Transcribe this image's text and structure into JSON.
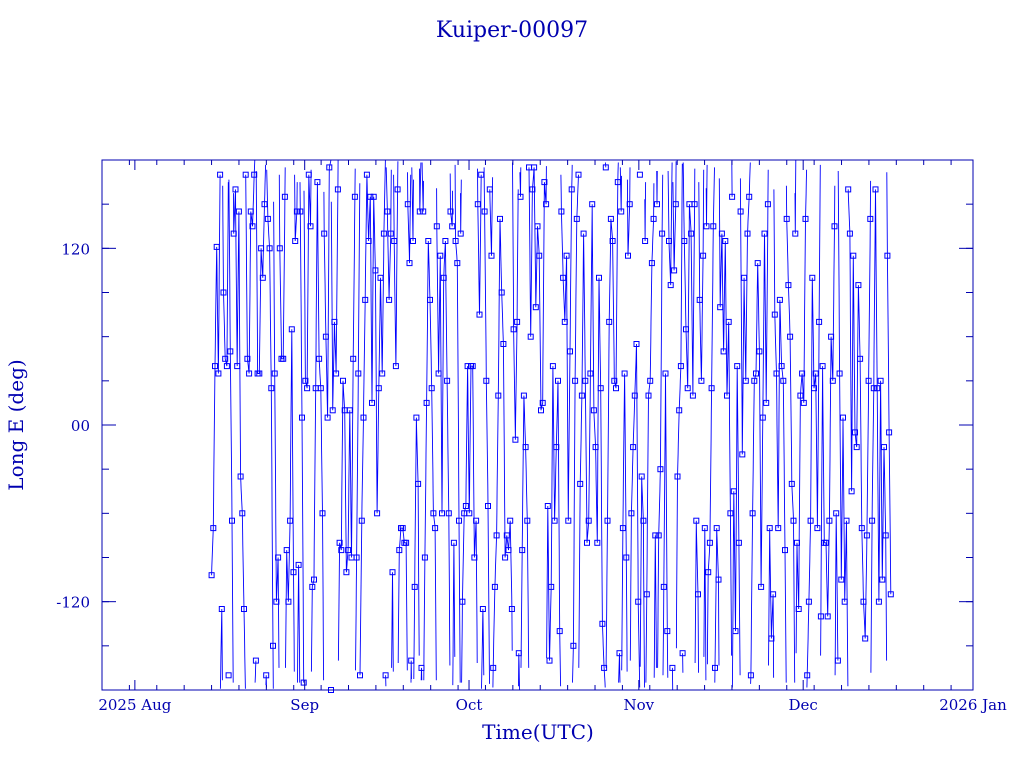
{
  "chart_data": {
    "type": "line",
    "title": "Kuiper-00097",
    "xlabel": "Time(UTC)",
    "ylabel": "Long E (deg)",
    "x_type": "date",
    "xlim": [
      "2025-07-26",
      "2026-01-01"
    ],
    "ylim": [
      -180,
      180
    ],
    "grid": false,
    "legend": "none",
    "x_tick_labels": [
      {
        "date": "2025-08-01",
        "label": "2025 Aug"
      },
      {
        "date": "2025-09-01",
        "label": "Sep"
      },
      {
        "date": "2025-10-01",
        "label": "Oct"
      },
      {
        "date": "2025-11-01",
        "label": "Nov"
      },
      {
        "date": "2025-12-01",
        "label": "Dec"
      },
      {
        "date": "2026-01-01",
        "label": "2026 Jan"
      }
    ],
    "y_ticks": [
      {
        "value": 120,
        "label": "120"
      },
      {
        "value": 0,
        "label": "00"
      },
      {
        "value": -120,
        "label": "-120"
      }
    ],
    "series": [
      {
        "color": "#0000ff",
        "marker": "square",
        "x_start": "2025-08-15",
        "x_end": "2025-12-17",
        "samples": [
          -102,
          -70,
          40,
          121,
          35,
          170,
          -125,
          90,
          45,
          40,
          -170,
          50,
          -65,
          130,
          160,
          40,
          145,
          -35,
          -60,
          -125,
          170,
          45,
          35,
          145,
          135,
          170,
          -160,
          35,
          35,
          120,
          100,
          150,
          -170,
          140,
          120,
          25,
          -150,
          35,
          -120,
          -90,
          120,
          45,
          45,
          155,
          -85,
          -120,
          -65,
          65,
          -100,
          125,
          145,
          -95,
          145,
          5,
          -175,
          30,
          25,
          170,
          135,
          -110,
          -105,
          25,
          165,
          45,
          25,
          -60,
          130,
          60,
          5,
          175,
          -180,
          10,
          70,
          35,
          160,
          -80,
          -85,
          30,
          10,
          -100,
          -85,
          10,
          -90,
          45,
          155,
          -90,
          35,
          -170,
          -65,
          5,
          85,
          170,
          125,
          155,
          15,
          155,
          105,
          -60,
          25,
          100,
          35,
          130,
          -170,
          145,
          85,
          130,
          -100,
          125,
          40,
          160,
          -85,
          -70,
          -70,
          -80,
          -80,
          150,
          110,
          -160,
          125,
          -110,
          5,
          -40,
          145,
          -165,
          145,
          -90,
          15,
          125,
          85,
          25,
          -60,
          -70,
          135,
          35,
          115,
          -60,
          100,
          125,
          30,
          -60,
          145,
          135,
          -80,
          125,
          110,
          -65,
          130,
          -120,
          -60,
          -55,
          40,
          -60,
          40,
          40,
          -90,
          -65,
          150,
          75,
          170,
          -125,
          145,
          30,
          -55,
          160,
          115,
          -165,
          -110,
          -75,
          20,
          140,
          90,
          55,
          -90,
          -75,
          -85,
          -65,
          -125,
          65,
          -10,
          70,
          -155,
          155,
          -85,
          20,
          -15,
          -65,
          175,
          60,
          160,
          175,
          80,
          135,
          115,
          10,
          15,
          165,
          150,
          -55,
          -160,
          -110,
          40,
          -65,
          -15,
          30,
          -140,
          145,
          100,
          70,
          115,
          -65,
          50,
          160,
          -150,
          30,
          140,
          170,
          -40,
          20,
          130,
          30,
          -80,
          -65,
          35,
          150,
          10,
          -15,
          -80,
          100,
          25,
          -135,
          -165,
          175,
          -65,
          70,
          140,
          125,
          30,
          25,
          165,
          -155,
          145,
          -70,
          35,
          -90,
          115,
          150,
          -60,
          -15,
          20,
          55,
          -120,
          170,
          -35,
          -65,
          125,
          -115,
          20,
          30,
          110,
          140,
          -75,
          150,
          -75,
          -30,
          130,
          -110,
          35,
          -140,
          125,
          95,
          -165,
          105,
          150,
          -35,
          10,
          40,
          -155,
          125,
          65,
          25,
          150,
          130,
          20,
          150,
          -65,
          -115,
          85,
          30,
          115,
          -70,
          135,
          -100,
          -80,
          25,
          135,
          -165,
          -70,
          -105,
          80,
          130,
          50,
          125,
          20,
          70,
          -60,
          155,
          -45,
          -140,
          40,
          -80,
          145,
          -20,
          100,
          30,
          130,
          155,
          -170,
          -60,
          30,
          35,
          110,
          50,
          -110,
          5,
          130,
          15,
          150,
          -70,
          -145,
          -115,
          75,
          35,
          -70,
          85,
          40,
          30,
          -85,
          140,
          95,
          60,
          -40,
          -65,
          130,
          -80,
          -125,
          20,
          35,
          15,
          140,
          -170,
          -120,
          -65,
          100,
          25,
          35,
          -70,
          70,
          -130,
          40,
          -80,
          -80,
          -130,
          -65,
          60,
          30,
          135,
          -60,
          -160,
          35,
          -105,
          5,
          -120,
          -65,
          160,
          130,
          -45,
          115,
          -5,
          -15,
          95,
          45,
          -70,
          -120,
          -145,
          -75,
          30,
          140,
          -65,
          25,
          160,
          25,
          -120,
          30,
          -105,
          -15,
          -75,
          115,
          -5,
          -115
        ]
      }
    ]
  }
}
